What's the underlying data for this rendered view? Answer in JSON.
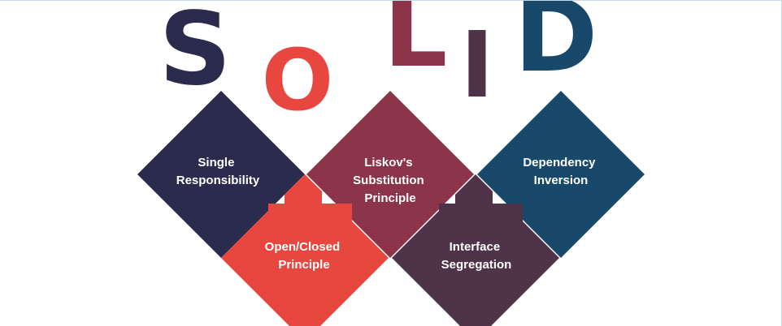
{
  "title_letters": [
    {
      "char": "S",
      "color": "#2b2b4d"
    },
    {
      "char": "O",
      "color": "#e8473f"
    },
    {
      "char": "L",
      "color": "#8c3449"
    },
    {
      "char": "I",
      "color": "#4f3349"
    },
    {
      "char": "D",
      "color": "#18496b"
    }
  ],
  "principles": [
    {
      "line1": "Single",
      "line2": "Responsibility",
      "line3": "",
      "color": "#2b2b4d"
    },
    {
      "line1": "Open/Closed",
      "line2": "Principle",
      "line3": "",
      "color": "#e8473f"
    },
    {
      "line1": "Liskov's",
      "line2": "Substitution",
      "line3": "Principle",
      "color": "#8c3449"
    },
    {
      "line1": "Interface",
      "line2": "Segregation",
      "line3": "",
      "color": "#4f3349"
    },
    {
      "line1": "Dependency",
      "line2": "Inversion",
      "line3": "",
      "color": "#18496b"
    }
  ]
}
